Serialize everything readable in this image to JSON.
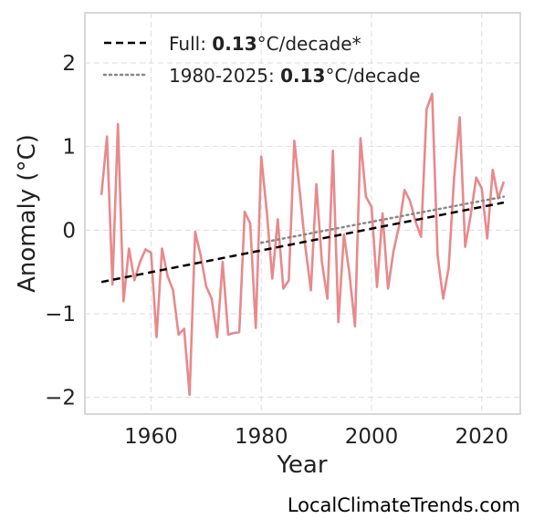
{
  "watermark": "LocalClimateTrends.com",
  "chart_data": {
    "type": "line",
    "xlabel": "Year",
    "ylabel": "Anomaly (°C)",
    "xlim": [
      1948,
      2027
    ],
    "ylim": [
      -2.2,
      2.6
    ],
    "xticks": [
      1960,
      1980,
      2000,
      2020
    ],
    "yticks": [
      -2,
      -1,
      0,
      1,
      2
    ],
    "ytick_labels": [
      "−2",
      "−1",
      "0",
      "1",
      "2"
    ],
    "grid": true,
    "legend_position": "top-left",
    "colors": {
      "series": "#e8898b",
      "full_trend": "#000000",
      "recent_trend": "#888888"
    },
    "series": [
      {
        "x": [
          1951,
          1952,
          1953,
          1954,
          1955,
          1956,
          1957,
          1958,
          1959,
          1960,
          1961,
          1962,
          1963,
          1964,
          1965,
          1966,
          1967,
          1968,
          1969,
          1970,
          1971,
          1972,
          1973,
          1974,
          1975,
          1976,
          1977,
          1978,
          1979,
          1980,
          1981,
          1982,
          1983,
          1984,
          1985,
          1986,
          1987,
          1988,
          1989,
          1990,
          1991,
          1992,
          1993,
          1994,
          1995,
          1996,
          1997,
          1998,
          1999,
          2000,
          2001,
          2002,
          2003,
          2004,
          2005,
          2006,
          2007,
          2008,
          2009,
          2010,
          2011,
          2012,
          2013,
          2014,
          2015,
          2016,
          2017,
          2018,
          2019,
          2020,
          2021,
          2022,
          2023,
          2024
        ],
        "values": [
          0.42,
          1.12,
          -0.65,
          1.27,
          -0.85,
          -0.22,
          -0.6,
          -0.38,
          -0.23,
          -0.27,
          -1.28,
          -0.22,
          -0.55,
          -0.72,
          -1.25,
          -1.18,
          -1.97,
          -0.02,
          -0.3,
          -0.67,
          -0.82,
          -1.28,
          -0.38,
          -1.25,
          -1.23,
          -1.22,
          0.22,
          0.08,
          -1.17,
          0.88,
          0.22,
          -0.58,
          0.13,
          -0.7,
          -0.6,
          1.07,
          0.45,
          -0.2,
          -0.72,
          0.55,
          -0.38,
          -0.82,
          0.95,
          -1.1,
          -0.05,
          -0.52,
          -1.15,
          1.1,
          0.4,
          0.28,
          -0.68,
          0.2,
          -0.7,
          -0.25,
          0.05,
          0.48,
          0.35,
          0.1,
          -0.08,
          1.45,
          1.63,
          -0.3,
          -0.82,
          -0.45,
          0.63,
          1.35,
          -0.2,
          0.18,
          0.63,
          0.5,
          -0.1,
          0.72,
          0.38,
          0.58
        ]
      }
    ],
    "trend_lines": [
      {
        "label_prefix": "Full: ",
        "label_value": "0.13",
        "label_suffix": "°C/decade*",
        "style": "dashed",
        "x": [
          1951,
          2024
        ],
        "y": [
          -0.62,
          0.33
        ]
      },
      {
        "label_prefix": "1980-2025: ",
        "label_value": "0.13",
        "label_suffix": "°C/decade",
        "style": "dotted",
        "x": [
          1980,
          2024
        ],
        "y": [
          -0.15,
          0.4
        ]
      }
    ]
  }
}
